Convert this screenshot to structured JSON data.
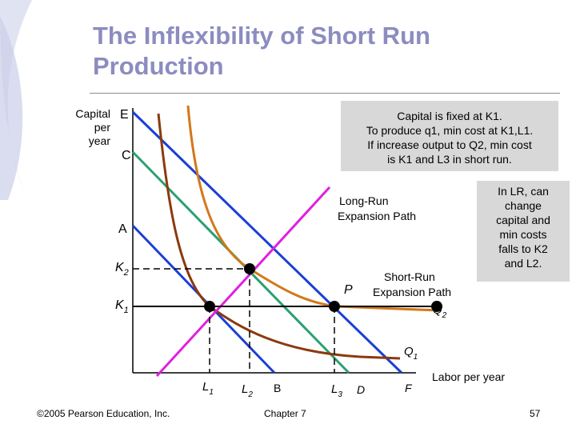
{
  "slide": {
    "title": "The Inflexibility of Short Run Production",
    "y_axis_label": "Capital\nper\nyear",
    "x_axis_label": "Labor per year",
    "y_ticks": {
      "E": "E",
      "C": "C",
      "A": "A",
      "K2": "K",
      "K2_sub": "2",
      "K1": "K",
      "K1_sub": "1"
    },
    "x_ticks": {
      "L1": "L",
      "L1_sub": "1",
      "L2": "L",
      "L2_sub": "2",
      "B": "B",
      "L3": "L",
      "L3_sub": "3",
      "D": "D",
      "F": "F"
    },
    "labels": {
      "long_run": "Long-Run\nExpansion Path",
      "short_run": "Short-Run\nExpansion Path",
      "P": "P",
      "Q1": "Q",
      "Q1_sub": "1",
      "Q2": "Q",
      "Q2_sub": "2"
    },
    "note_box_1": "Capital is fixed at K1.\nTo produce q1, min cost at K1,L1.\nIf increase output to Q2, min cost\nis K1 and L3 in short run.",
    "note_box_2": "In LR, can\nchange\ncapital and\nmin costs\nfalls to K2\nand L2.",
    "footer_left": "©2005 Pearson Education, Inc.",
    "footer_center": "Chapter 7",
    "footer_right": "57"
  },
  "colors": {
    "title": "#8c8cc0",
    "long_run_path": "#e020e0",
    "short_run_path": "#000000",
    "isocost": "#1a3fd6",
    "isocost_mid": "#2aa070",
    "isoquant_q1": "#8b3a0e",
    "isoquant_q2": "#d2781a"
  }
}
